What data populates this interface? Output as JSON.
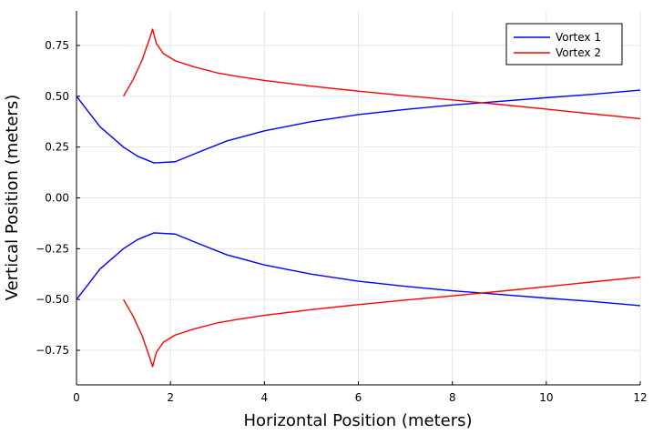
{
  "chart_data": {
    "type": "line",
    "title": "",
    "xlabel": "Horizontal Position (meters)",
    "ylabel": "Vertical Position (meters)",
    "xlim": [
      0,
      12
    ],
    "ylim": [
      -0.92,
      0.92
    ],
    "xticks": [
      0,
      2,
      4,
      6,
      8,
      10,
      12
    ],
    "xtick_labels": [
      "0",
      "2",
      "4",
      "6",
      "8",
      "10",
      "12"
    ],
    "yticks": [
      0.75,
      0.5,
      0.25,
      0.0,
      -0.25,
      -0.5,
      -0.75
    ],
    "ytick_labels": [
      "0.75",
      "0.50",
      "0.25",
      "0.00",
      "−0.25",
      "−0.50",
      "−0.75"
    ],
    "grid": true,
    "legend_position": "top-right",
    "series": [
      {
        "name": "Vortex 1",
        "color": "#0000ff",
        "segments": [
          {
            "x": [
              0,
              0.5,
              1.0,
              1.3,
              1.65,
              2.1,
              2.6,
              3.2,
              4.0,
              5.0,
              6.0,
              7.0,
              8.0,
              9.0,
              10.0,
              11.0,
              12.0
            ],
            "y": [
              0.5,
              0.35,
              0.25,
              0.205,
              0.172,
              0.178,
              0.225,
              0.28,
              0.33,
              0.375,
              0.41,
              0.435,
              0.457,
              0.475,
              0.493,
              0.51,
              0.53
            ]
          },
          {
            "x": [
              0,
              0.5,
              1.0,
              1.3,
              1.65,
              2.1,
              2.6,
              3.2,
              4.0,
              5.0,
              6.0,
              7.0,
              8.0,
              9.0,
              10.0,
              11.0,
              12.0
            ],
            "y": [
              -0.5,
              -0.35,
              -0.25,
              -0.205,
              -0.172,
              -0.178,
              -0.225,
              -0.28,
              -0.33,
              -0.375,
              -0.41,
              -0.435,
              -0.457,
              -0.475,
              -0.493,
              -0.51,
              -0.53
            ]
          }
        ]
      },
      {
        "name": "Vortex 2",
        "color": "#ff0000",
        "segments": [
          {
            "x": [
              1.0,
              1.2,
              1.4,
              1.55,
              1.62,
              1.7,
              1.85,
              2.1,
              2.5,
              3.0,
              3.5,
              4.0,
              5.0,
              6.0,
              7.0,
              8.0,
              9.0,
              10.0,
              11.0,
              12.0
            ],
            "y": [
              0.5,
              0.58,
              0.68,
              0.78,
              0.83,
              0.76,
              0.71,
              0.675,
              0.645,
              0.615,
              0.595,
              0.578,
              0.55,
              0.525,
              0.503,
              0.482,
              0.46,
              0.437,
              0.413,
              0.39
            ]
          },
          {
            "x": [
              1.0,
              1.2,
              1.4,
              1.55,
              1.62,
              1.7,
              1.85,
              2.1,
              2.5,
              3.0,
              3.5,
              4.0,
              5.0,
              6.0,
              7.0,
              8.0,
              9.0,
              10.0,
              11.0,
              12.0
            ],
            "y": [
              -0.5,
              -0.58,
              -0.68,
              -0.78,
              -0.83,
              -0.76,
              -0.71,
              -0.675,
              -0.645,
              -0.615,
              -0.595,
              -0.578,
              -0.55,
              -0.525,
              -0.503,
              -0.482,
              -0.46,
              -0.437,
              -0.413,
              -0.39
            ]
          }
        ]
      }
    ]
  }
}
